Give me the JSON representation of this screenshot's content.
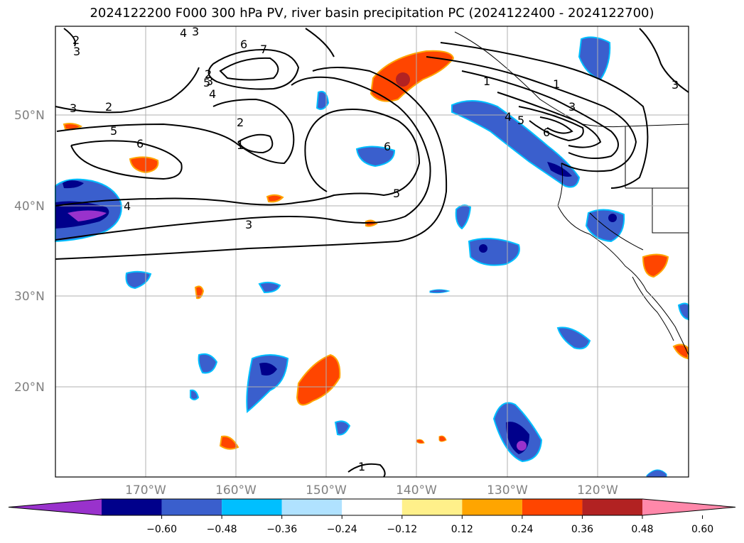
{
  "title": "2024122200 F000 300 hPa PV, river basin precipitation PC (2024122400 - 2024122700)",
  "map": {
    "lat_labels": [
      "50°N",
      "40°N",
      "30°N",
      "20°N"
    ],
    "lon_labels": [
      "170°W",
      "160°W",
      "150°W",
      "140°W",
      "130°W",
      "120°W"
    ],
    "contour_labels": [
      "2",
      "3",
      "4",
      "3",
      "2",
      "3",
      "6",
      "7",
      "5",
      "4",
      "3",
      "2",
      "5",
      "6",
      "2",
      "1",
      "4",
      "3",
      "6",
      "5",
      "1",
      "1",
      "4",
      "3",
      "5",
      "6",
      "3",
      "1"
    ]
  },
  "colorbar": {
    "ticks": [
      "−0.60",
      "−0.48",
      "−0.36",
      "−0.24",
      "−0.12",
      "0.12",
      "0.24",
      "0.36",
      "0.48",
      "0.60"
    ],
    "colors": [
      "#9932cc",
      "#00008b",
      "#3a5fcd",
      "#00bfff",
      "#b0e2ff",
      "#ffffff",
      "#fff08a",
      "#ffa500",
      "#ff4500",
      "#b22222",
      "#ff88aa"
    ]
  }
}
